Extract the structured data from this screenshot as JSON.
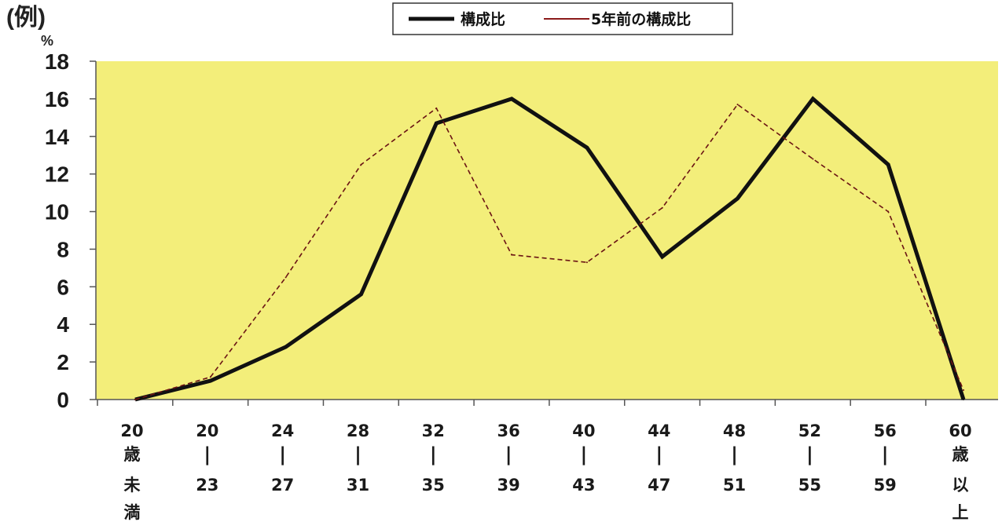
{
  "header": {
    "unit_label": "(例)",
    "y_unit": "%"
  },
  "legend": {
    "items": [
      {
        "label": "構成比",
        "color": "#111111",
        "style": "solid-thick"
      },
      {
        "label": "5年前の構成比",
        "color": "#8b1a1a",
        "style": "solid-thin"
      }
    ]
  },
  "colors": {
    "plot_background": "#f3ee7a",
    "grid": "#8a8a8a"
  },
  "chart_data": {
    "type": "line",
    "categories": [
      {
        "lines": [
          "20",
          "歳",
          "未",
          "満"
        ]
      },
      {
        "lines": [
          "20",
          "|",
          "23"
        ]
      },
      {
        "lines": [
          "24",
          "|",
          "27"
        ]
      },
      {
        "lines": [
          "28",
          "|",
          "31"
        ]
      },
      {
        "lines": [
          "32",
          "|",
          "35"
        ]
      },
      {
        "lines": [
          "36",
          "|",
          "39"
        ]
      },
      {
        "lines": [
          "40",
          "|",
          "43"
        ]
      },
      {
        "lines": [
          "44",
          "|",
          "47"
        ]
      },
      {
        "lines": [
          "48",
          "|",
          "51"
        ]
      },
      {
        "lines": [
          "52",
          "|",
          "55"
        ]
      },
      {
        "lines": [
          "56",
          "|",
          "59"
        ]
      },
      {
        "lines": [
          "60",
          "歳",
          "以",
          "上"
        ]
      }
    ],
    "series": [
      {
        "name": "構成比",
        "values": [
          0,
          1.0,
          2.8,
          5.6,
          14.7,
          16.0,
          13.4,
          7.6,
          10.7,
          16.0,
          12.5,
          0
        ]
      },
      {
        "name": "5年前の構成比",
        "values": [
          0,
          1.2,
          6.5,
          12.5,
          15.5,
          7.7,
          7.3,
          10.2,
          15.7,
          12.8,
          10.0,
          0.5
        ]
      }
    ],
    "yticks": [
      0,
      2,
      4,
      6,
      8,
      10,
      12,
      14,
      16,
      18
    ],
    "ylim": [
      0,
      18
    ],
    "grid": false,
    "legend_position": "top"
  }
}
